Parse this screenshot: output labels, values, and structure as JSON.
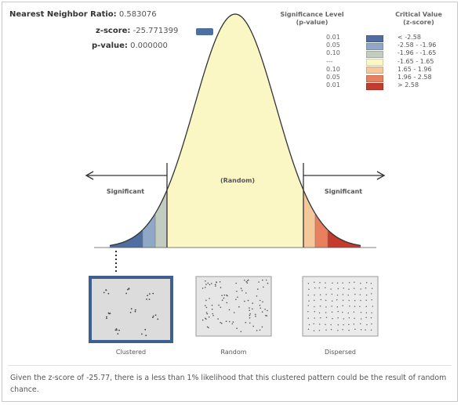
{
  "stats": {
    "ratio_label": "Nearest Neighbor Ratio:",
    "ratio_value": "0.583076",
    "z_label": "z-score:",
    "z_value": "-25.771399",
    "p_label": "p-value:",
    "p_value": "0.000000"
  },
  "legend": {
    "sig_head_line1": "Significance Level",
    "sig_head_line2": "(p-value)",
    "crit_head_line1": "Critical Value",
    "crit_head_line2": "(z-score)",
    "rows": [
      {
        "p": "0.01",
        "z": "< -2.58",
        "color": "#4f6fa0"
      },
      {
        "p": "0.05",
        "z": "-2.58 - -1.96",
        "color": "#8fa8c8"
      },
      {
        "p": "0.10",
        "z": "-1.96 - -1.65",
        "color": "#c3ccc0"
      },
      {
        "p": "---",
        "z": "-1.65 - 1.65",
        "color": "#fbf7c4"
      },
      {
        "p": "0.10",
        "z": "1.65 - 1.96",
        "color": "#f5c89c"
      },
      {
        "p": "0.05",
        "z": "1.96 - 2.58",
        "color": "#e8805e"
      },
      {
        "p": "0.01",
        "z": "> 2.58",
        "color": "#c73a2e"
      }
    ]
  },
  "curve": {
    "significant_left": "Significant",
    "random": "(Random)",
    "significant_right": "Significant"
  },
  "panels": {
    "clustered": "Clustered",
    "random": "Random",
    "dispersed": "Dispersed"
  },
  "conclusion": "Given the z-score of -25.77, there is a less than 1% likelihood that this clustered pattern could be the result of random chance.",
  "colors": {
    "frame_blue": "#3e5f8f",
    "curve_fill": "#fbf7c4"
  }
}
